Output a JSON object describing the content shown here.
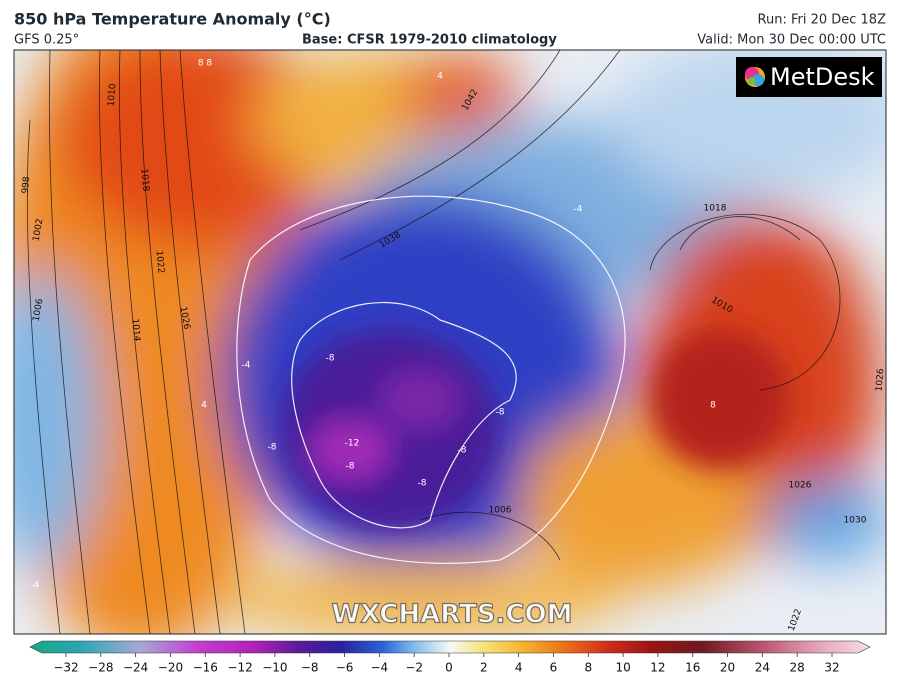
{
  "header": {
    "title": "850 hPa Temperature Anomaly (°C)",
    "model": "GFS 0.25°",
    "base": "Base: CFSR 1979-2010 climatology",
    "run": "Run: Fri 20 Dec 18Z",
    "valid": "Valid: Mon 30 Dec 00:00 UTC"
  },
  "logo": "MetDesk",
  "watermark": "WXCHARTS.COM",
  "isobar_labels": [
    "1010",
    "998",
    "1002",
    "1006",
    "1014",
    "1018",
    "1022",
    "1026",
    "1038",
    "1042",
    "1018",
    "1010",
    "1026",
    "1006",
    "1026",
    "1030",
    "1022"
  ],
  "anomaly_labels": [
    "-8",
    "-12",
    "-8",
    "-8",
    "-8",
    "-8",
    "-8",
    "8",
    "4",
    "-4",
    "-4",
    "4",
    "-4",
    "8 8"
  ],
  "colorbar": {
    "ticks": [
      {
        "value": -32,
        "label": "−32"
      },
      {
        "value": -28,
        "label": "−28"
      },
      {
        "value": -24,
        "label": "−24"
      },
      {
        "value": -20,
        "label": "−20"
      },
      {
        "value": -16,
        "label": "−16"
      },
      {
        "value": -12,
        "label": "−12"
      },
      {
        "value": -10,
        "label": "−10"
      },
      {
        "value": -8,
        "label": "−8"
      },
      {
        "value": -6,
        "label": "−6"
      },
      {
        "value": -4,
        "label": "−4"
      },
      {
        "value": -2,
        "label": "−2"
      },
      0,
      2,
      4,
      6,
      8,
      10,
      12,
      16,
      20,
      24,
      28,
      32
    ]
  }
}
